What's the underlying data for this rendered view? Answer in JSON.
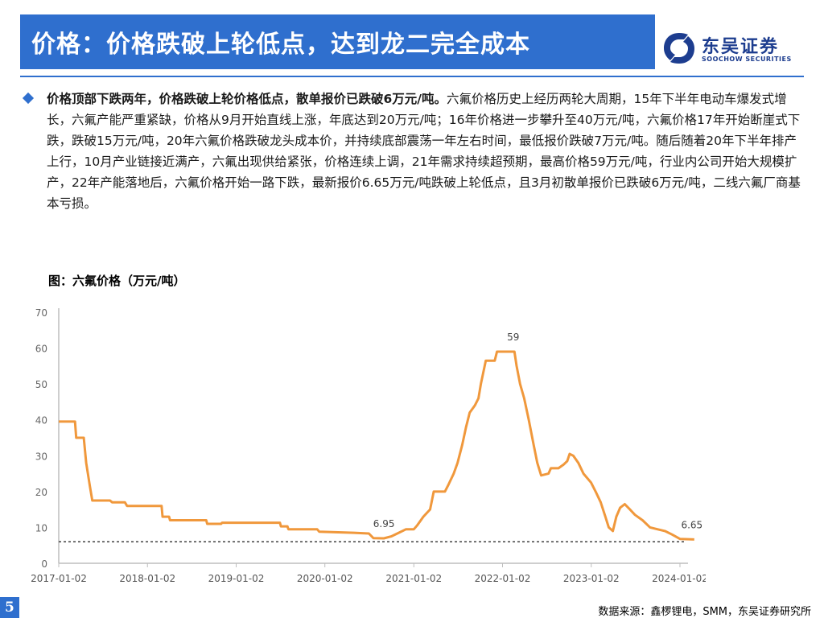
{
  "header": {
    "title": "价格：价格跌破上轮低点，达到龙二完全成本",
    "logo_cn": "东吴证券",
    "logo_en": "SOOCHOW SECURITIES"
  },
  "body": {
    "lead": "价格顶部下跌两年，价格跌破上轮价格低点，散单报价已跌破6万元/吨。",
    "text": "六氟价格历史上经历两轮大周期，15年下半年电动车爆发式增长，六氟产能严重紧缺，价格从9月开始直线上涨，年底达到20万元/吨；16年价格进一步攀升至40万元/吨，六氟价格17年开始断崖式下跌，跌破15万元/吨，20年六氟价格跌破龙头成本价，并持续底部震荡一年左右时间，最低报价跌破7万元/吨。随后随着20年下半年排产上行，10月产业链接近满产，六氟出现供给紧张，价格连续上调，21年需求持续超预期，最高价格59万元/吨，行业内公司开始大规模扩产，22年产能落地后，六氟价格开始一路下跌，最新报价6.65万元/吨跌破上轮低点，且3月初散单报价已跌破6万元/吨，二线六氟厂商基本亏损。"
  },
  "figure": {
    "title": "图：六氟价格（万元/吨）"
  },
  "footer": {
    "page": "5",
    "source": "数据来源：鑫椤锂电，SMM，东吴证券研究所"
  },
  "colors": {
    "accent": "#2f6fce",
    "line": "#f0983c",
    "axis": "#bdbdbd"
  },
  "chart_data": {
    "type": "line",
    "xlabel": "",
    "ylabel": "",
    "ylim": [
      0,
      70
    ],
    "yticks": [
      0,
      10,
      20,
      30,
      40,
      50,
      60,
      70
    ],
    "xticks": [
      "2017-01-02",
      "2018-01-02",
      "2019-01-02",
      "2020-01-02",
      "2021-01-02",
      "2022-01-02",
      "2023-01-02",
      "2024-01-02"
    ],
    "x_range": [
      "2017-01-02",
      "2024-03-01"
    ],
    "grid": false,
    "reference_line": {
      "value": 6,
      "style": "dashed"
    },
    "annotations": [
      {
        "x": "2020-09-01",
        "y": 6.95,
        "text": "6.95"
      },
      {
        "x": "2022-02-15",
        "y": 59,
        "text": "59"
      },
      {
        "x": "2024-02-20",
        "y": 6.65,
        "text": "6.65"
      }
    ],
    "series": [
      {
        "points": [
          [
            "2017-01-02",
            39.5
          ],
          [
            "2017-03-10",
            39.5
          ],
          [
            "2017-03-15",
            35
          ],
          [
            "2017-04-15",
            35
          ],
          [
            "2017-04-25",
            28
          ],
          [
            "2017-05-10",
            21.5
          ],
          [
            "2017-05-20",
            17.5
          ],
          [
            "2017-08-01",
            17.5
          ],
          [
            "2017-08-10",
            17
          ],
          [
            "2017-10-01",
            17
          ],
          [
            "2017-10-10",
            16
          ],
          [
            "2018-03-01",
            16
          ],
          [
            "2018-03-05",
            13
          ],
          [
            "2018-04-01",
            13
          ],
          [
            "2018-04-05",
            12
          ],
          [
            "2018-09-01",
            12
          ],
          [
            "2018-09-05",
            11
          ],
          [
            "2018-11-01",
            11
          ],
          [
            "2018-11-05",
            11.3
          ],
          [
            "2019-07-01",
            11.3
          ],
          [
            "2019-07-05",
            10.3
          ],
          [
            "2019-08-01",
            10.3
          ],
          [
            "2019-08-05",
            9.5
          ],
          [
            "2019-12-01",
            9.5
          ],
          [
            "2019-12-10",
            8.8
          ],
          [
            "2020-05-01",
            8.5
          ],
          [
            "2020-07-01",
            8.3
          ],
          [
            "2020-07-20",
            7
          ],
          [
            "2020-09-01",
            6.95
          ],
          [
            "2020-10-01",
            7.5
          ],
          [
            "2020-11-01",
            8.5
          ],
          [
            "2020-12-01",
            9.5
          ],
          [
            "2021-01-02",
            9.5
          ],
          [
            "2021-01-15",
            10.5
          ],
          [
            "2021-02-10",
            13
          ],
          [
            "2021-03-10",
            15
          ],
          [
            "2021-03-25",
            20
          ],
          [
            "2021-05-10",
            20
          ],
          [
            "2021-05-25",
            22
          ],
          [
            "2021-06-15",
            25
          ],
          [
            "2021-07-01",
            28
          ],
          [
            "2021-07-20",
            33
          ],
          [
            "2021-08-05",
            38
          ],
          [
            "2021-08-20",
            42
          ],
          [
            "2021-09-10",
            44
          ],
          [
            "2021-09-25",
            46
          ],
          [
            "2021-10-05",
            50
          ],
          [
            "2021-10-25",
            56.5
          ],
          [
            "2021-12-01",
            56.5
          ],
          [
            "2021-12-10",
            59
          ],
          [
            "2022-02-20",
            59
          ],
          [
            "2022-03-01",
            55
          ],
          [
            "2022-03-15",
            50
          ],
          [
            "2022-04-01",
            46
          ],
          [
            "2022-04-20",
            40
          ],
          [
            "2022-05-10",
            33
          ],
          [
            "2022-05-25",
            28
          ],
          [
            "2022-06-10",
            24.5
          ],
          [
            "2022-07-10",
            25
          ],
          [
            "2022-07-20",
            26.5
          ],
          [
            "2022-08-20",
            26.5
          ],
          [
            "2022-09-10",
            27.5
          ],
          [
            "2022-09-25",
            28.5
          ],
          [
            "2022-10-05",
            30.5
          ],
          [
            "2022-10-20",
            30
          ],
          [
            "2022-11-10",
            28
          ],
          [
            "2022-12-01",
            25
          ],
          [
            "2023-01-01",
            22.5
          ],
          [
            "2023-01-20",
            20
          ],
          [
            "2023-02-10",
            17
          ],
          [
            "2023-03-01",
            13
          ],
          [
            "2023-03-15",
            10
          ],
          [
            "2023-04-01",
            9
          ],
          [
            "2023-04-15",
            13
          ],
          [
            "2023-05-01",
            15.5
          ],
          [
            "2023-05-20",
            16.5
          ],
          [
            "2023-06-10",
            15
          ],
          [
            "2023-07-01",
            13.5
          ],
          [
            "2023-08-01",
            12
          ],
          [
            "2023-09-01",
            10
          ],
          [
            "2023-10-01",
            9.5
          ],
          [
            "2023-11-01",
            9
          ],
          [
            "2023-12-01",
            8
          ],
          [
            "2024-01-02",
            6.8
          ],
          [
            "2024-03-01",
            6.65
          ]
        ]
      }
    ]
  }
}
